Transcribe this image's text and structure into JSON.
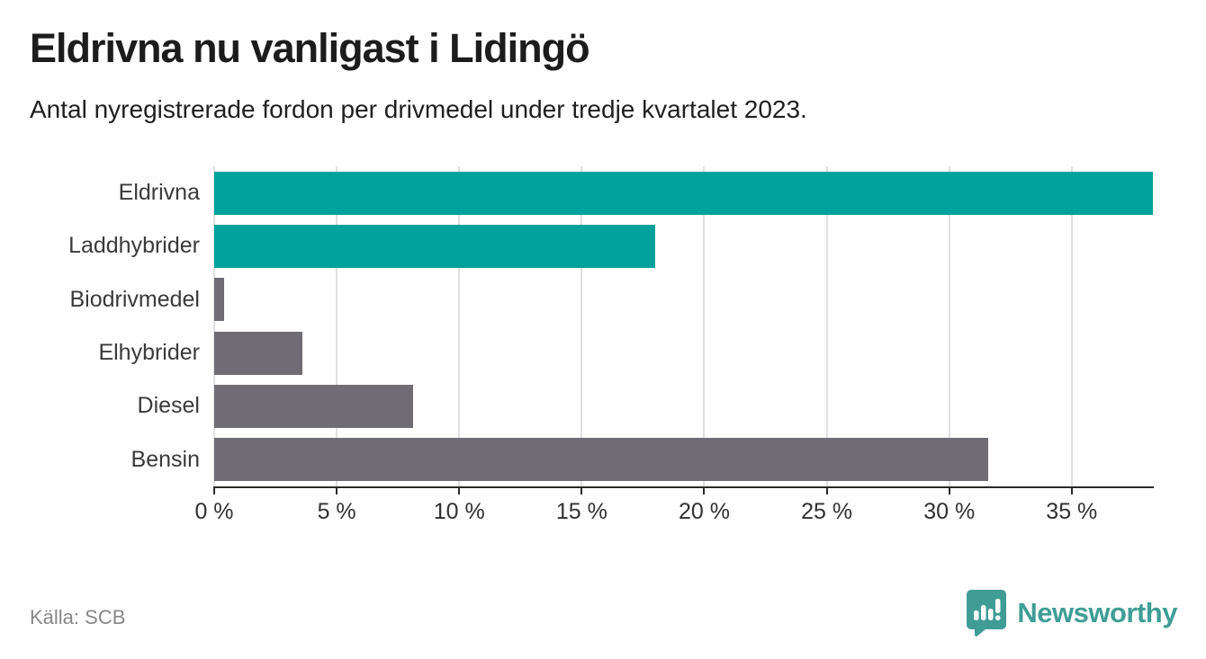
{
  "header": {
    "title": "Eldrivna nu vanligast i Lidingö",
    "subtitle": "Antal nyregistrerade fordon per drivmedel under tredje kvartalet 2023."
  },
  "chart_data": {
    "type": "bar",
    "orientation": "horizontal",
    "title": "Eldrivna nu vanligast i Lidingö",
    "subtitle": "Antal nyregistrerade fordon per drivmedel under tredje kvartalet 2023.",
    "categories": [
      "Eldrivna",
      "Laddhybrider",
      "Biodrivmedel",
      "Elhybrider",
      "Diesel",
      "Bensin"
    ],
    "values": [
      38.3,
      18.0,
      0.4,
      3.6,
      8.1,
      31.6
    ],
    "unit": "%",
    "xlabel": "",
    "ylabel": "",
    "xlim": [
      0,
      38.35
    ],
    "xticks": [
      0,
      5,
      10,
      15,
      20,
      25,
      30,
      35
    ],
    "xtick_suffix": " %",
    "grid": true,
    "legend": false,
    "bar_colors": [
      "#00a29b",
      "#00a29b",
      "#6f6c74",
      "#6f6c74",
      "#6f6c74",
      "#6f6c74"
    ],
    "highlight_color": "#00a29b",
    "default_color": "#6f6c74"
  },
  "footer": {
    "source": "Källa: SCB",
    "brand": "Newsworthy"
  },
  "colors": {
    "accent_teal": "#00a29b",
    "bar_gray": "#6f6c74",
    "logo_teal": "#3f9d95",
    "axis": "#2b2b2b",
    "gridline": "#e0e0e0",
    "title_text": "#1c1c1c",
    "category_text": "#3a3a3a",
    "source_text": "#878787"
  }
}
